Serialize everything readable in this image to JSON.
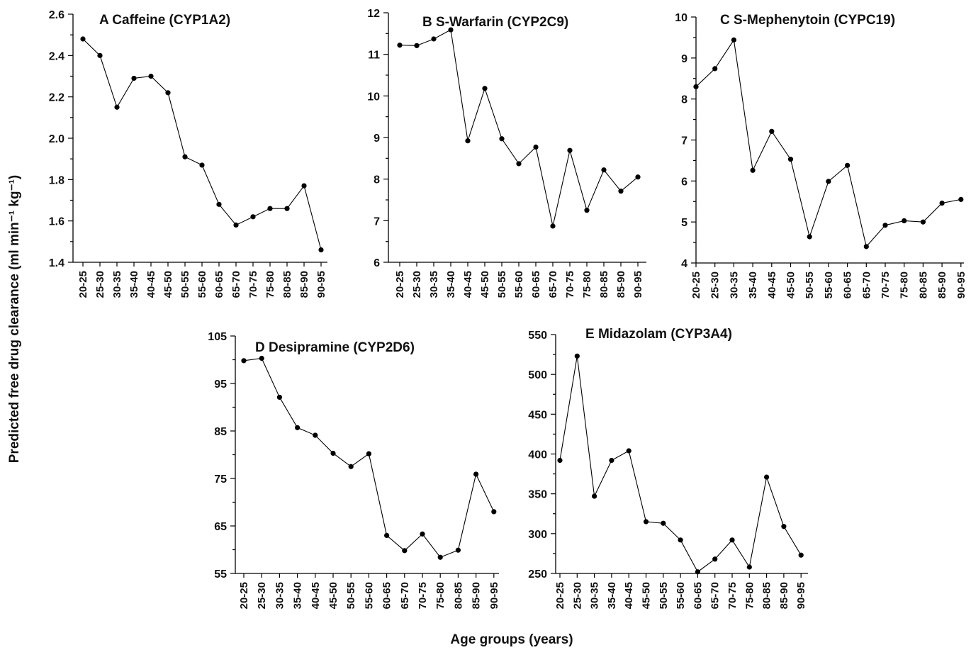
{
  "figure": {
    "ylabel": "Predicted free drug clearance (ml min⁻¹ kg⁻¹)",
    "xlabel": "Age groups (years)"
  },
  "chart_data": [
    {
      "type": "line",
      "title": "A Caffeine (CYP1A2)",
      "categories": [
        "20-25",
        "25-30",
        "30-35",
        "35-40",
        "40-45",
        "45-50",
        "50-55",
        "55-60",
        "60-65",
        "65-70",
        "70-75",
        "75-80",
        "80-85",
        "85-90",
        "90-95"
      ],
      "series": [
        {
          "values": [
            2.48,
            2.4,
            2.15,
            2.29,
            2.3,
            2.22,
            1.91,
            1.87,
            1.68,
            1.58,
            1.62,
            1.66,
            1.66,
            1.77,
            1.46
          ]
        }
      ],
      "ylim": [
        1.4,
        2.6
      ],
      "yticks": [
        "1.4",
        "1.6",
        "1.8",
        "2.0",
        "2.2",
        "2.4",
        "2.6"
      ]
    },
    {
      "type": "line",
      "title": "B S-Warfarin (CYP2C9)",
      "categories": [
        "20-25",
        "25-30",
        "30-35",
        "35-40",
        "40-45",
        "45-50",
        "50-55",
        "55-60",
        "60-65",
        "65-70",
        "70-75",
        "75-80",
        "80-85",
        "85-90",
        "90-95"
      ],
      "series": [
        {
          "values": [
            11.22,
            11.21,
            11.37,
            11.59,
            8.92,
            10.18,
            8.97,
            8.37,
            8.77,
            6.87,
            8.69,
            7.25,
            8.22,
            7.71,
            8.05
          ]
        }
      ],
      "ylim": [
        6,
        12
      ],
      "yticks": [
        "6",
        "7",
        "8",
        "9",
        "10",
        "11",
        "12"
      ]
    },
    {
      "type": "line",
      "title": "C S-Mephenytoin (CYPC19)",
      "categories": [
        "20-25",
        "25-30",
        "30-35",
        "35-40",
        "40-45",
        "45-50",
        "50-55",
        "55-60",
        "60-65",
        "65-70",
        "70-75",
        "75-80",
        "80-85",
        "85-90",
        "90-95"
      ],
      "series": [
        {
          "values": [
            8.3,
            8.74,
            9.44,
            6.26,
            7.21,
            6.53,
            4.64,
            5.99,
            6.38,
            4.4,
            4.92,
            5.03,
            5.0,
            5.46,
            5.55
          ]
        }
      ],
      "ylim": [
        4,
        10
      ],
      "yticks": [
        "4",
        "5",
        "6",
        "7",
        "8",
        "9",
        "10"
      ]
    },
    {
      "type": "line",
      "title": "D Desipramine (CYP2D6)",
      "categories": [
        "20-25",
        "25-30",
        "30-35",
        "35-40",
        "40-45",
        "45-50",
        "50-55",
        "55-60",
        "60-65",
        "65-70",
        "70-75",
        "75-80",
        "80-85",
        "85-90",
        "90-95"
      ],
      "series": [
        {
          "values": [
            99.8,
            100.3,
            92.1,
            85.7,
            84.1,
            80.3,
            77.5,
            80.2,
            63.0,
            59.8,
            63.3,
            58.4,
            59.9,
            75.9,
            68.0
          ]
        }
      ],
      "ylim": [
        55,
        105
      ],
      "yticks": [
        "55",
        "65",
        "75",
        "85",
        "95",
        "105"
      ]
    },
    {
      "type": "line",
      "title": "E Midazolam (CYP3A4)",
      "categories": [
        "20-25",
        "25-30",
        "30-35",
        "35-40",
        "40-45",
        "45-50",
        "50-55",
        "55-60",
        "60-65",
        "65-70",
        "70-75",
        "75-80",
        "80-85",
        "85-90",
        "90-95"
      ],
      "series": [
        {
          "values": [
            392,
            523,
            347,
            392,
            404,
            315,
            313,
            292,
            252,
            268,
            292,
            258,
            371,
            309,
            273
          ]
        }
      ],
      "ylim": [
        250,
        550
      ],
      "yticks": [
        "250",
        "300",
        "350",
        "400",
        "450",
        "500",
        "550"
      ]
    }
  ]
}
